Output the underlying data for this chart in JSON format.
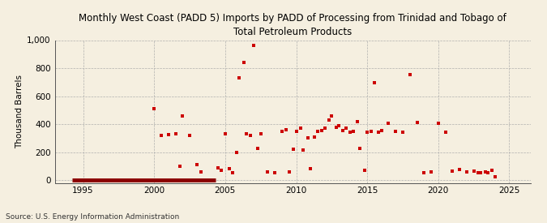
{
  "title": "Monthly West Coast (PADD 5) Imports by PADD of Processing from Trinidad and Tobago of\nTotal Petroleum Products",
  "ylabel": "Thousand Barrels",
  "source": "Source: U.S. Energy Information Administration",
  "background_color": "#f5efe0",
  "marker_color": "#cc0000",
  "line_color": "#8b0000",
  "xlim": [
    1993.0,
    2026.5
  ],
  "ylim": [
    -20,
    1000
  ],
  "xticks": [
    1995,
    2000,
    2005,
    2010,
    2015,
    2020,
    2025
  ],
  "yticks": [
    0,
    200,
    400,
    600,
    800,
    1000
  ],
  "scatter_x": [
    2000.0,
    2000.5,
    2001.0,
    2001.5,
    2001.8,
    2002.0,
    2002.5,
    2003.0,
    2003.3,
    2004.5,
    2004.7,
    2005.0,
    2005.3,
    2005.5,
    2005.8,
    2006.0,
    2006.3,
    2006.5,
    2006.8,
    2007.0,
    2007.3,
    2007.5,
    2008.0,
    2008.5,
    2009.0,
    2009.3,
    2009.5,
    2009.8,
    2010.0,
    2010.3,
    2010.5,
    2010.8,
    2011.0,
    2011.3,
    2011.5,
    2011.8,
    2012.0,
    2012.3,
    2012.5,
    2012.8,
    2013.0,
    2013.3,
    2013.5,
    2013.8,
    2014.0,
    2014.3,
    2014.5,
    2014.8,
    2015.0,
    2015.3,
    2015.5,
    2015.8,
    2016.0,
    2016.5,
    2017.0,
    2017.5,
    2018.0,
    2018.5,
    2019.0,
    2019.5,
    2020.0,
    2020.5,
    2021.0,
    2021.5,
    2022.0,
    2022.5,
    2022.8,
    2023.0,
    2023.3,
    2023.5,
    2023.8,
    2024.0
  ],
  "scatter_y": [
    510,
    320,
    325,
    330,
    100,
    460,
    320,
    110,
    60,
    90,
    70,
    330,
    80,
    55,
    200,
    730,
    840,
    330,
    320,
    960,
    225,
    330,
    60,
    50,
    350,
    360,
    60,
    220,
    350,
    370,
    215,
    300,
    80,
    305,
    350,
    355,
    370,
    430,
    460,
    375,
    390,
    355,
    370,
    340,
    350,
    420,
    225,
    70,
    345,
    350,
    695,
    345,
    355,
    405,
    350,
    340,
    755,
    410,
    55,
    60,
    405,
    345,
    65,
    75,
    60,
    65,
    50,
    50,
    60,
    55,
    70,
    25
  ],
  "zero_line_x_start": 1994.2,
  "zero_line_x_end": 2004.3,
  "title_fontsize": 8.5,
  "tick_fontsize": 7.5,
  "ylabel_fontsize": 7.5,
  "source_fontsize": 6.5
}
